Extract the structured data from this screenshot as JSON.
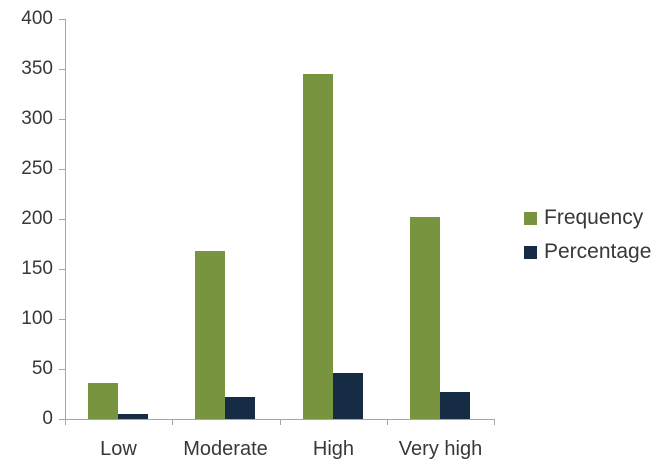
{
  "chart_data": {
    "type": "bar",
    "title": "",
    "xlabel": "",
    "ylabel": "",
    "categories": [
      "Low",
      "Moderate",
      "High",
      "Very high"
    ],
    "series": [
      {
        "name": "Frequency",
        "color": "#78943E",
        "values": [
          36,
          168,
          345,
          202
        ]
      },
      {
        "name": "Percentage",
        "color": "#152C44",
        "values": [
          4.8,
          22.4,
          45.9,
          26.9
        ]
      }
    ],
    "ylim": [
      0,
      400
    ],
    "yticks": [
      0,
      50,
      100,
      150,
      200,
      250,
      300,
      350,
      400
    ],
    "grid": false,
    "legend_position": "right",
    "colors": {
      "axis": "#A6A6A6",
      "text": "#383838",
      "background": "#FFFFFF"
    }
  }
}
